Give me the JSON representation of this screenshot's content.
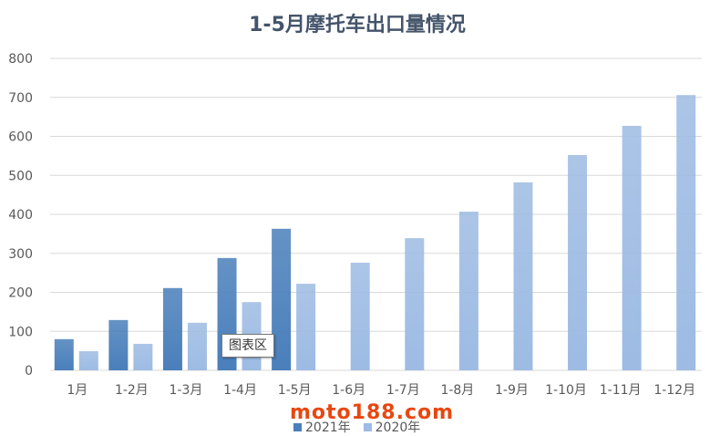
{
  "chart_data": {
    "type": "bar",
    "title": "1-5月摩托车出口量情况",
    "categories": [
      "1月",
      "1-2月",
      "1-3月",
      "1-4月",
      "1-5月",
      "1-6月",
      "1-7月",
      "1-8月",
      "1-9月",
      "1-10月",
      "1-11月",
      "1-12月"
    ],
    "series": [
      {
        "name": "2021年",
        "color": "#4a7fbb",
        "values": [
          80,
          129,
          211,
          288,
          363,
          null,
          null,
          null,
          null,
          null,
          null,
          null
        ]
      },
      {
        "name": "2020年",
        "color": "#9dbbe3",
        "values": [
          49,
          68,
          122,
          175,
          222,
          276,
          339,
          407,
          482,
          552,
          627,
          706
        ]
      }
    ],
    "ylim": [
      0,
      800
    ],
    "yticks": [
      0,
      100,
      200,
      300,
      400,
      500,
      600,
      700,
      800
    ],
    "grid": true,
    "legend": "bottom"
  },
  "tooltip": "图表区",
  "watermark": "moto188.com"
}
